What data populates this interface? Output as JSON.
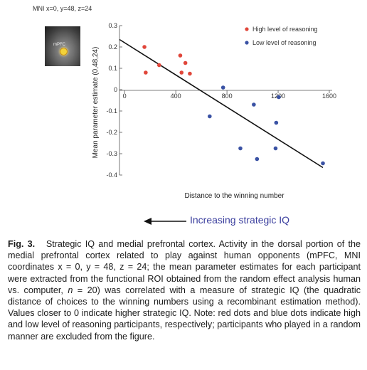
{
  "figure": {
    "inset_label": "MNI x=0, y=48, z=24",
    "roi_label": "mPFC",
    "arrow_text": "Increasing strategic IQ",
    "caption_number": "Fig. 3.",
    "caption_title": "Strategic IQ and medial prefrontal cortex.",
    "caption_body_1": "Activity in the dorsal portion of the medial prefrontal cortex related to play against human opponents (mPFC, MNI coordinates x = 0, y = 48, z = 24; the mean parameter estimates for each participant were extracted from the functional ROI obtained from the random effect analysis human vs. computer,",
    "caption_n": "n",
    "caption_body_2": "= 20) was correlated with a measure of strategic IQ (the quadratic distance of choices to the winning numbers using a recombinant estimation method). Values closer to 0 indicate higher strategic IQ. Note: red dots and blue dots indicate high and low level of reasoning participants, respectively; participants who played in a random manner are excluded from the figure."
  },
  "chart_data": {
    "type": "scatter",
    "xlabel": "Distance to the winning number",
    "ylabel": "Mean parameter estimate (0,48,24)",
    "xlim": [
      -40,
      1600
    ],
    "ylim": [
      -0.4,
      0.3
    ],
    "x_ticks": [
      0,
      400,
      800,
      1200,
      1600
    ],
    "x_tick_labels": [
      "0",
      "400",
      "800",
      "1200",
      "1600"
    ],
    "y_ticks": [
      0.3,
      0.2,
      0.1,
      0,
      -0.1,
      -0.2,
      -0.3,
      -0.4
    ],
    "y_tick_labels": [
      "0.3",
      "0.2",
      "0.1",
      "0",
      "-0.1",
      "-0.2",
      "-0.3",
      "-0.4"
    ],
    "legend_position": "top-right",
    "series": [
      {
        "name": "High level of reasoning",
        "color": "#e0463a",
        "points": [
          [
            155,
            0.2
          ],
          [
            165,
            0.08
          ],
          [
            270,
            0.115
          ],
          [
            435,
            0.16
          ],
          [
            445,
            0.08
          ],
          [
            475,
            0.125
          ],
          [
            510,
            0.075
          ]
        ]
      },
      {
        "name": "Low level of reasoning",
        "color": "#3a52a4",
        "points": [
          [
            770,
            0.01
          ],
          [
            665,
            -0.125
          ],
          [
            905,
            -0.275
          ],
          [
            1010,
            -0.07
          ],
          [
            1035,
            -0.325
          ],
          [
            1180,
            -0.275
          ],
          [
            1185,
            -0.155
          ],
          [
            1205,
            -0.035
          ],
          [
            1550,
            -0.345
          ]
        ]
      }
    ],
    "fit_line": {
      "x": [
        -40,
        1550
      ],
      "y": [
        0.235,
        -0.365
      ],
      "color": "#111111"
    }
  }
}
